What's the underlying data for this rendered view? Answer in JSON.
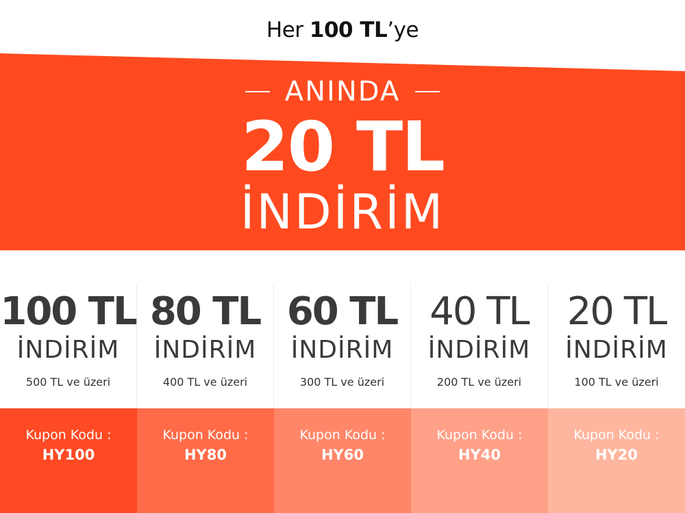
{
  "headline": {
    "prefix": "Her",
    "amount": "100 TL",
    "suffix": "’ye"
  },
  "banner": {
    "color": "#ff4a1f",
    "kicker": "ANINDA",
    "amount": "20 TL",
    "label": "İNDİRİM"
  },
  "tiers": [
    {
      "amount": "100 TL",
      "weight": "bold",
      "label": "İNDİRİM",
      "min": "500 TL ve üzeri",
      "coupon_label": "Kupon Kodu :",
      "coupon_code": "HY100",
      "color": "#ff4a24"
    },
    {
      "amount": "80 TL",
      "weight": "bold",
      "label": "İNDİRİM",
      "min": "400 TL ve üzeri",
      "coupon_label": "Kupon Kodu :",
      "coupon_code": "HY80",
      "color": "#ff6a48"
    },
    {
      "amount": "60 TL",
      "weight": "bold",
      "label": "İNDİRİM",
      "min": "300 TL ve üzeri",
      "coupon_label": "Kupon Kodu :",
      "coupon_code": "HY60",
      "color": "#ff8668"
    },
    {
      "amount": "40 TL",
      "weight": "normal",
      "label": "İNDİRİM",
      "min": "200 TL ve üzeri",
      "coupon_label": "Kupon Kodu :",
      "coupon_code": "HY40",
      "color": "#ffa088"
    },
    {
      "amount": "20 TL",
      "weight": "normal",
      "label": "İNDİRİM",
      "min": "100 TL ve üzeri",
      "coupon_label": "Kupon Kodu :",
      "coupon_code": "HY20",
      "color": "#ffb69e"
    }
  ]
}
